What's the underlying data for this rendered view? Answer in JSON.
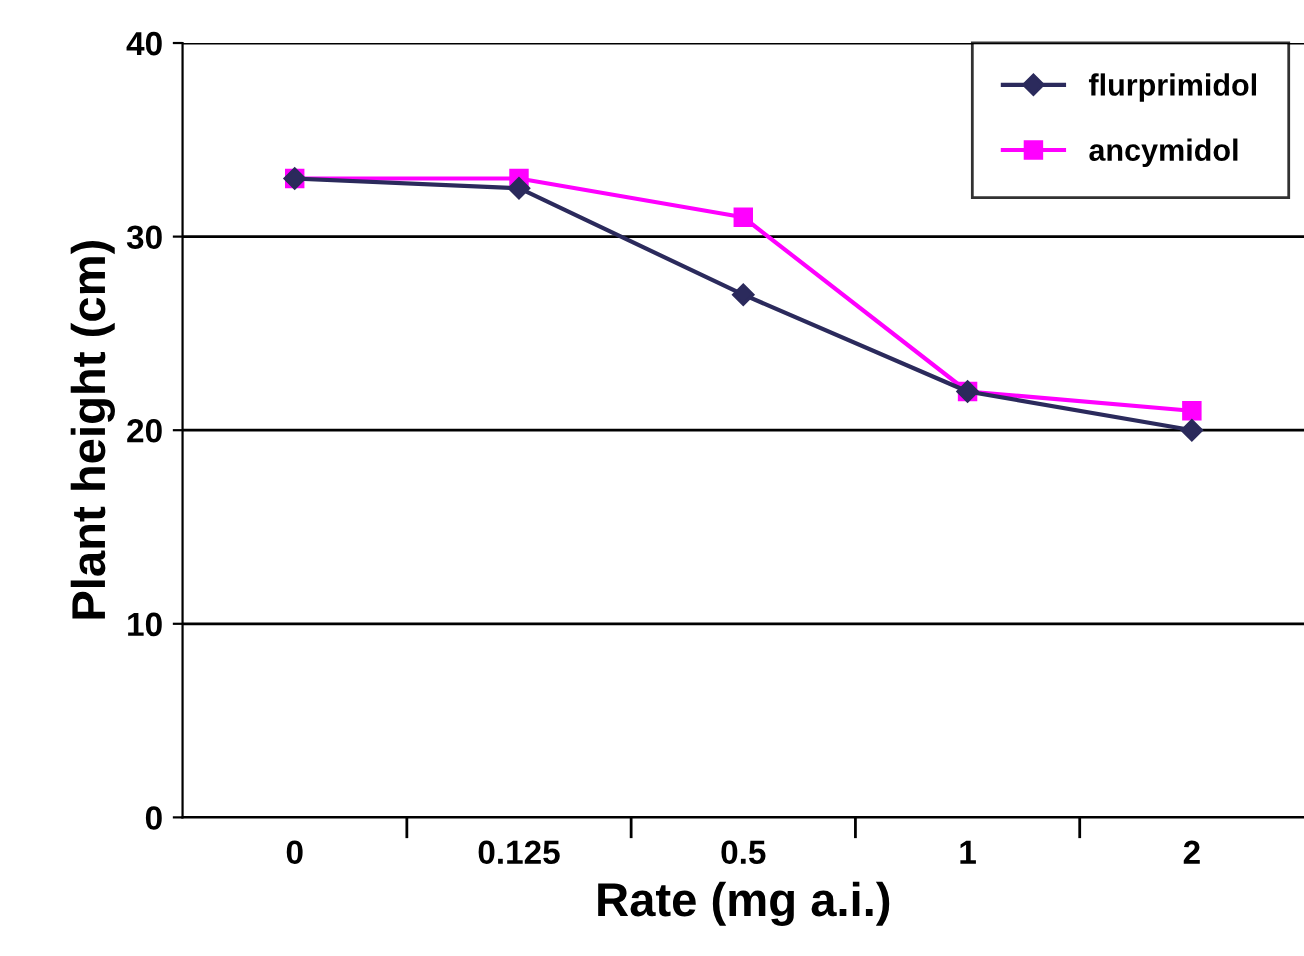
{
  "chart_data": {
    "type": "line",
    "xlabel": "Rate (mg a.i.)",
    "ylabel": "Plant height (cm)",
    "categories": [
      "0",
      "0.125",
      "0.5",
      "1",
      "2"
    ],
    "series": [
      {
        "name": "flurprimidol",
        "color": "#2b2a5c",
        "marker": "diamond",
        "values": [
          33,
          32.5,
          27,
          22,
          20
        ]
      },
      {
        "name": "ancymidol",
        "color": "#ff00ff",
        "marker": "square",
        "values": [
          33,
          33,
          31,
          22,
          21
        ]
      }
    ],
    "ylim": [
      0,
      40
    ],
    "yticks": [
      0,
      10,
      20,
      30,
      40
    ],
    "grid": "y",
    "legend": "top right",
    "line_style": "solid"
  }
}
